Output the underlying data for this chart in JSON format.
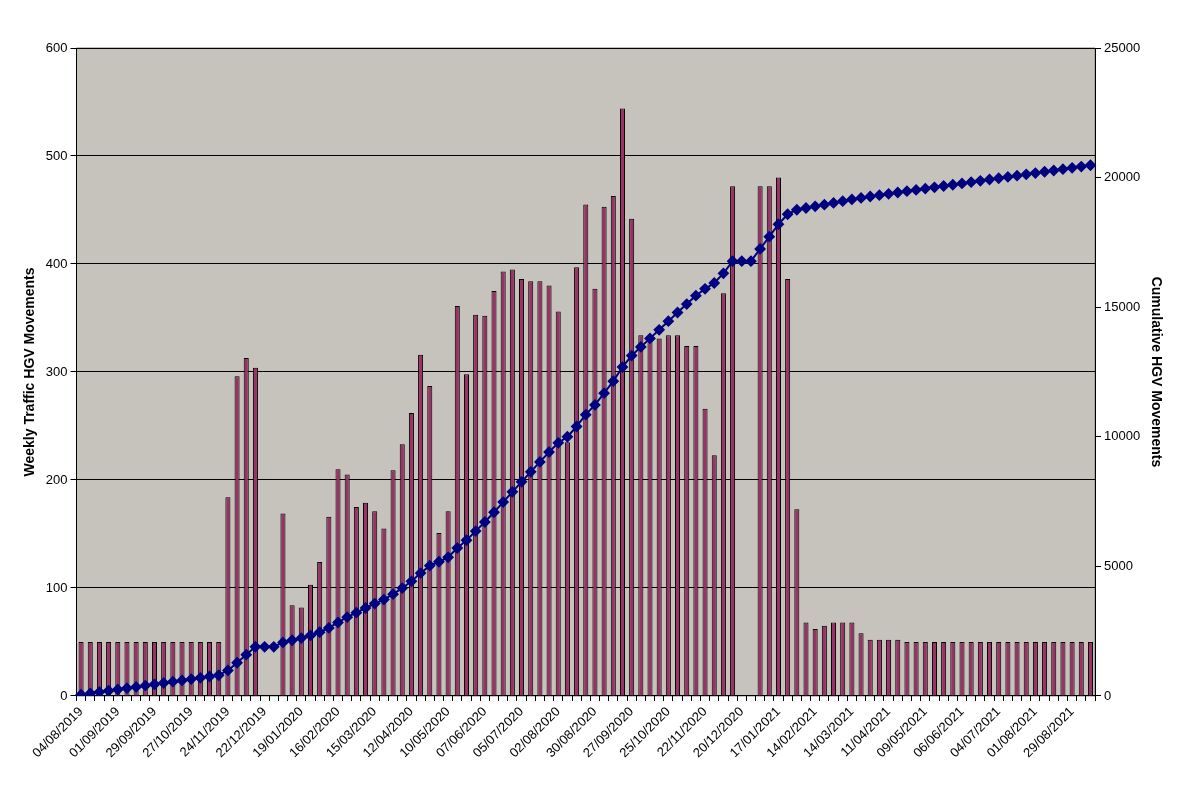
{
  "chart_data": {
    "type": "bar",
    "ylabel": "Weekly Traffic HGV Movements",
    "y2label": "Cumulative HGV Movements",
    "categories": [
      "04/08/2019",
      null,
      null,
      null,
      "01/09/2019",
      null,
      null,
      null,
      "29/09/2019",
      null,
      null,
      null,
      "27/10/2019",
      null,
      null,
      null,
      "24/11/2019",
      null,
      null,
      null,
      "22/12/2019",
      null,
      null,
      null,
      "19/01/2020",
      null,
      null,
      null,
      "16/02/2020",
      null,
      null,
      null,
      "15/03/2020",
      null,
      null,
      null,
      "12/04/2020",
      null,
      null,
      null,
      "10/05/2020",
      null,
      null,
      null,
      "07/06/2020",
      null,
      null,
      null,
      "05/07/2020",
      null,
      null,
      null,
      "02/08/2020",
      null,
      null,
      null,
      "30/08/2020",
      null,
      null,
      null,
      "27/09/2020",
      null,
      null,
      null,
      "25/10/2020",
      null,
      null,
      null,
      "22/11/2020",
      null,
      null,
      null,
      "20/12/2020",
      null,
      null,
      null,
      "17/01/2021",
      null,
      null,
      null,
      "14/02/2021",
      null,
      null,
      null,
      "14/03/2021",
      null,
      null,
      null,
      "11/04/2021",
      null,
      null,
      null,
      "09/05/2021",
      null,
      null,
      null,
      "06/06/2021",
      null,
      null,
      null,
      "04/07/2021",
      null,
      null,
      null,
      "01/08/2021",
      null,
      null,
      null,
      "29/08/2021",
      null,
      null
    ],
    "series": [
      {
        "color": "#993366",
        "values": [
          50,
          50,
          50,
          50,
          50,
          50,
          50,
          50,
          50,
          50,
          50,
          50,
          50,
          50,
          50,
          50,
          184,
          296,
          313,
          304,
          null,
          null,
          169,
          84,
          82,
          103,
          124,
          166,
          210,
          205,
          175,
          179,
          171,
          155,
          209,
          233,
          262,
          316,
          287,
          151,
          171,
          361,
          298,
          353,
          352,
          375,
          393,
          395,
          386,
          384,
          384,
          380,
          356,
          235,
          397,
          455,
          377,
          453,
          463,
          544,
          442,
          334,
          330,
          331,
          334,
          334,
          324,
          324,
          266,
          223,
          373,
          472,
          null,
          null,
          472,
          472,
          480,
          386,
          173,
          68,
          62,
          65,
          68,
          68,
          68,
          58,
          52,
          52,
          52,
          52,
          50,
          50,
          50,
          50,
          50,
          50,
          50,
          50,
          50,
          50,
          50,
          50,
          50,
          50,
          50,
          50,
          50,
          50,
          50,
          50,
          50
        ]
      },
      {
        "type": "line",
        "axis": "y2",
        "color": "#000080",
        "marker": "diamond",
        "values": [
          50,
          100,
          150,
          200,
          250,
          300,
          350,
          400,
          450,
          500,
          550,
          600,
          650,
          700,
          750,
          800,
          984,
          1280,
          1593,
          1897,
          1897,
          1897,
          2066,
          2150,
          2232,
          2335,
          2459,
          2625,
          2835,
          3040,
          3215,
          3394,
          3565,
          3720,
          3929,
          4162,
          4424,
          4740,
          5027,
          5178,
          5349,
          5710,
          6008,
          6361,
          6713,
          7088,
          7481,
          7876,
          8262,
          8646,
          9030,
          9410,
          9766,
          10001,
          10398,
          10853,
          11230,
          11683,
          12146,
          12690,
          13132,
          13466,
          13796,
          14127,
          14461,
          14795,
          15119,
          15443,
          15709,
          15932,
          16305,
          16777,
          16777,
          16777,
          17249,
          17721,
          18201,
          18587,
          18760,
          18828,
          18890,
          18955,
          19023,
          19091,
          19159,
          19217,
          19269,
          19321,
          19373,
          19425,
          19475,
          19525,
          19575,
          19625,
          19675,
          19725,
          19775,
          19825,
          19875,
          19925,
          19975,
          20025,
          20075,
          20125,
          20175,
          20225,
          20275,
          20325,
          20375,
          20425,
          20475
        ]
      }
    ],
    "ylim": [
      0,
      600
    ],
    "yticks": [
      0,
      100,
      200,
      300,
      400,
      500,
      600
    ],
    "y2lim": [
      0,
      25000
    ],
    "y2ticks": [
      0,
      5000,
      10000,
      15000,
      20000,
      25000
    ],
    "grid": "y"
  }
}
